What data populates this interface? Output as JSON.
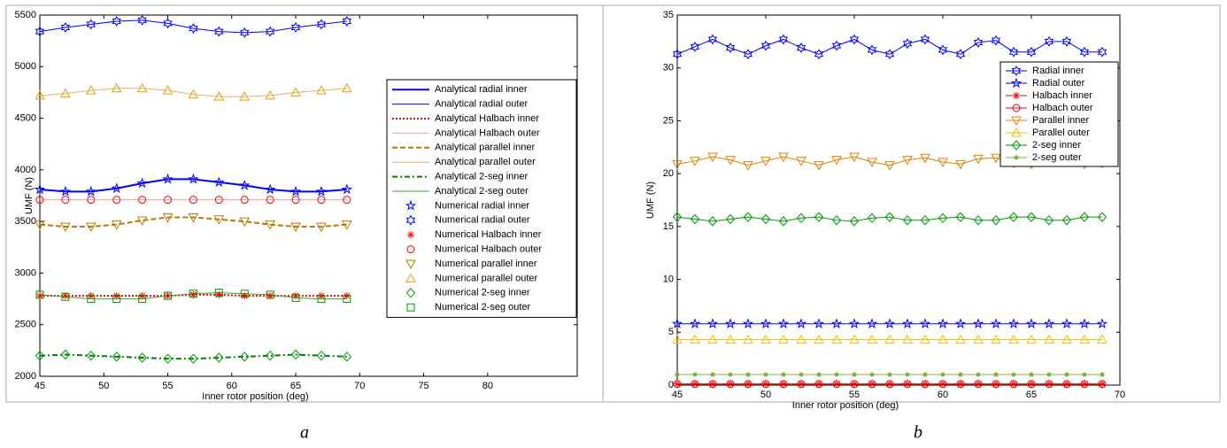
{
  "chart_data": [
    {
      "type": "line",
      "panel_label": "a",
      "xlabel": "Inner rotor position (deg)",
      "ylabel": "UMF (N)",
      "xlim": [
        45,
        87
      ],
      "xticks": [
        45,
        50,
        55,
        60,
        65,
        70,
        75,
        80
      ],
      "ylim": [
        2000,
        5500
      ],
      "yticks": [
        2000,
        2500,
        3000,
        3500,
        4000,
        4500,
        5000,
        5500
      ],
      "legend": "east",
      "x": [
        45,
        47,
        49,
        51,
        53,
        55,
        57,
        59,
        61,
        63,
        65,
        67,
        69
      ],
      "series": [
        {
          "name": "Analytical radial inner",
          "color": "#0000ff",
          "linestyle": "solid",
          "linewidth": 2,
          "marker": "none",
          "values": [
            3810,
            3790,
            3790,
            3820,
            3870,
            3910,
            3910,
            3880,
            3850,
            3810,
            3790,
            3790,
            3810
          ]
        },
        {
          "name": "Analytical radial outer",
          "color": "#0000ff",
          "linestyle": "solid",
          "linewidth": 1,
          "marker": "none",
          "values": [
            5340,
            5380,
            5410,
            5440,
            5450,
            5420,
            5370,
            5340,
            5330,
            5340,
            5380,
            5410,
            5440
          ]
        },
        {
          "name": "Analytical Halbach inner",
          "color": "#ff0000",
          "linestyle": "dotted",
          "linewidth": 2,
          "marker": "none",
          "values": [
            2780,
            2780,
            2780,
            2780,
            2780,
            2780,
            2790,
            2790,
            2780,
            2780,
            2780,
            2780,
            2780
          ]
        },
        {
          "name": "Analytical Halbach outer",
          "color": "#ff9c9c",
          "linestyle": "solid",
          "linewidth": 1,
          "marker": "none",
          "values": [
            3710,
            3710,
            3710,
            3710,
            3710,
            3710,
            3710,
            3710,
            3710,
            3710,
            3710,
            3710,
            3710
          ]
        },
        {
          "name": "Analytical parallel inner",
          "color": "#b8780a",
          "linestyle": "dashed",
          "linewidth": 2,
          "marker": "none",
          "values": [
            3470,
            3450,
            3450,
            3470,
            3510,
            3540,
            3540,
            3520,
            3500,
            3470,
            3450,
            3450,
            3470
          ]
        },
        {
          "name": "Analytical parallel outer",
          "color": "#f0b060",
          "linestyle": "solid",
          "linewidth": 1,
          "marker": "none",
          "values": [
            4720,
            4740,
            4770,
            4790,
            4790,
            4770,
            4730,
            4710,
            4710,
            4720,
            4750,
            4770,
            4790
          ]
        },
        {
          "name": "Analytical 2-seg inner",
          "color": "#008000",
          "linestyle": "dashdot",
          "linewidth": 2,
          "marker": "none",
          "values": [
            2200,
            2210,
            2200,
            2190,
            2180,
            2170,
            2170,
            2180,
            2190,
            2200,
            2210,
            2200,
            2190
          ]
        },
        {
          "name": "Analytical 2-seg outer",
          "color": "#33aa33",
          "linestyle": "solid",
          "linewidth": 1,
          "marker": "none",
          "values": [
            2790,
            2770,
            2750,
            2750,
            2750,
            2780,
            2800,
            2810,
            2800,
            2790,
            2760,
            2750,
            2750
          ]
        },
        {
          "name": "Numerical radial inner",
          "color": "#0000ff",
          "linestyle": "none",
          "linewidth": 1,
          "marker": "pentagram",
          "values": [
            3810,
            3790,
            3790,
            3820,
            3870,
            3910,
            3910,
            3880,
            3850,
            3810,
            3790,
            3790,
            3810
          ]
        },
        {
          "name": "Numerical radial outer",
          "color": "#0000ff",
          "linestyle": "none",
          "linewidth": 1,
          "marker": "hexagram",
          "values": [
            5340,
            5380,
            5410,
            5440,
            5450,
            5420,
            5370,
            5340,
            5330,
            5340,
            5380,
            5410,
            5440
          ]
        },
        {
          "name": "Numerical Halbach inner",
          "color": "#ff0000",
          "linestyle": "none",
          "linewidth": 1,
          "marker": "asterisk",
          "values": [
            2780,
            2780,
            2780,
            2780,
            2780,
            2780,
            2790,
            2790,
            2780,
            2780,
            2780,
            2780,
            2780
          ]
        },
        {
          "name": "Numerical Halbach outer",
          "color": "#ff0000",
          "linestyle": "none",
          "linewidth": 1,
          "marker": "circle",
          "values": [
            3710,
            3710,
            3710,
            3710,
            3710,
            3710,
            3710,
            3710,
            3710,
            3710,
            3710,
            3710,
            3710
          ]
        },
        {
          "name": "Numerical parallel inner",
          "color": "#c07800",
          "linestyle": "none",
          "linewidth": 1,
          "marker": "tri-down",
          "values": [
            3470,
            3450,
            3450,
            3470,
            3510,
            3540,
            3540,
            3520,
            3500,
            3470,
            3450,
            3450,
            3470
          ]
        },
        {
          "name": "Numerical parallel outer",
          "color": "#e8a000",
          "linestyle": "none",
          "linewidth": 1,
          "marker": "tri-up",
          "values": [
            4720,
            4740,
            4770,
            4790,
            4790,
            4770,
            4730,
            4710,
            4710,
            4720,
            4750,
            4770,
            4790
          ]
        },
        {
          "name": "Numerical 2-seg inner",
          "color": "#009900",
          "linestyle": "none",
          "linewidth": 1,
          "marker": "diamond",
          "values": [
            2200,
            2210,
            2200,
            2190,
            2180,
            2170,
            2170,
            2180,
            2190,
            2200,
            2210,
            2200,
            2190
          ]
        },
        {
          "name": "Numerical 2-seg outer",
          "color": "#009900",
          "linestyle": "none",
          "linewidth": 1,
          "marker": "square",
          "values": [
            2790,
            2770,
            2750,
            2750,
            2750,
            2780,
            2800,
            2810,
            2800,
            2790,
            2760,
            2750,
            2750
          ]
        }
      ]
    },
    {
      "type": "line",
      "panel_label": "b",
      "xlabel": "Inner rotor position (deg)",
      "ylabel": "UMF (N)",
      "xlim": [
        45,
        70
      ],
      "xticks": [
        45,
        50,
        55,
        60,
        65,
        70
      ],
      "ylim": [
        0,
        35
      ],
      "yticks": [
        0,
        5,
        10,
        15,
        20,
        25,
        30,
        35
      ],
      "legend": "northeast",
      "x": [
        45,
        46,
        47,
        48,
        49,
        50,
        51,
        52,
        53,
        54,
        55,
        56,
        57,
        58,
        59,
        60,
        61,
        62,
        63,
        64,
        65,
        66,
        67,
        68,
        69
      ],
      "series": [
        {
          "name": "Radial inner",
          "color": "#0000ff",
          "linestyle": "solid",
          "linewidth": 1,
          "marker": "hexagram",
          "values": [
            31.3,
            32.0,
            32.7,
            31.9,
            31.3,
            32.1,
            32.7,
            31.9,
            31.3,
            32.1,
            32.7,
            31.7,
            31.3,
            32.3,
            32.7,
            31.7,
            31.3,
            32.4,
            32.6,
            31.5,
            31.5,
            32.5,
            32.5,
            31.5,
            31.5
          ]
        },
        {
          "name": "Radial outer",
          "color": "#0000ff",
          "linestyle": "solid",
          "linewidth": 1,
          "marker": "pentagram",
          "values": [
            5.8,
            5.8,
            5.8,
            5.8,
            5.8,
            5.8,
            5.8,
            5.8,
            5.8,
            5.8,
            5.8,
            5.8,
            5.8,
            5.8,
            5.8,
            5.8,
            5.8,
            5.8,
            5.8,
            5.8,
            5.8,
            5.8,
            5.8,
            5.8,
            5.8
          ]
        },
        {
          "name": "Halbach inner",
          "color": "#ff0000",
          "linestyle": "solid",
          "linewidth": 1,
          "marker": "asterisk",
          "values": [
            0.1,
            0.1,
            0.1,
            0.1,
            0.1,
            0.1,
            0.1,
            0.1,
            0.1,
            0.1,
            0.1,
            0.1,
            0.1,
            0.1,
            0.1,
            0.1,
            0.1,
            0.1,
            0.1,
            0.1,
            0.1,
            0.1,
            0.1,
            0.1,
            0.1
          ]
        },
        {
          "name": "Halbach outer",
          "color": "#ff0000",
          "linestyle": "solid",
          "linewidth": 1,
          "marker": "circle",
          "values": [
            0.1,
            0.1,
            0.1,
            0.1,
            0.1,
            0.1,
            0.1,
            0.1,
            0.1,
            0.1,
            0.1,
            0.1,
            0.1,
            0.1,
            0.1,
            0.1,
            0.1,
            0.1,
            0.1,
            0.1,
            0.1,
            0.1,
            0.1,
            0.1,
            0.1
          ]
        },
        {
          "name": "Parallel inner",
          "color": "#e08000",
          "linestyle": "solid",
          "linewidth": 1,
          "marker": "tri-down",
          "values": [
            20.9,
            21.2,
            21.6,
            21.3,
            20.8,
            21.2,
            21.6,
            21.2,
            20.8,
            21.3,
            21.6,
            21.1,
            20.8,
            21.3,
            21.5,
            21.1,
            20.9,
            21.4,
            21.5,
            21.0,
            20.9,
            21.4,
            21.4,
            20.9,
            21.0
          ]
        },
        {
          "name": "Parallel outer",
          "color": "#f0c000",
          "linestyle": "solid",
          "linewidth": 1,
          "marker": "tri-up",
          "values": [
            4.3,
            4.3,
            4.3,
            4.3,
            4.3,
            4.3,
            4.3,
            4.3,
            4.3,
            4.3,
            4.3,
            4.3,
            4.3,
            4.3,
            4.3,
            4.3,
            4.3,
            4.3,
            4.3,
            4.3,
            4.3,
            4.3,
            4.3,
            4.3,
            4.3
          ]
        },
        {
          "name": "2-seg inner",
          "color": "#009900",
          "linestyle": "solid",
          "linewidth": 1,
          "marker": "diamond",
          "values": [
            15.9,
            15.7,
            15.5,
            15.7,
            15.9,
            15.7,
            15.5,
            15.8,
            15.9,
            15.6,
            15.5,
            15.8,
            15.9,
            15.6,
            15.6,
            15.8,
            15.9,
            15.6,
            15.6,
            15.9,
            15.9,
            15.6,
            15.6,
            15.9,
            15.9
          ]
        },
        {
          "name": "2-seg outer",
          "color": "#80b040",
          "linestyle": "solid",
          "linewidth": 1,
          "marker": "dot",
          "values": [
            1.0,
            1.0,
            1.0,
            1.0,
            1.0,
            1.0,
            1.0,
            1.0,
            1.0,
            1.0,
            1.0,
            1.0,
            1.0,
            1.0,
            1.0,
            1.0,
            1.0,
            1.0,
            1.0,
            1.0,
            1.0,
            1.0,
            1.0,
            1.0,
            1.0
          ]
        }
      ]
    }
  ]
}
